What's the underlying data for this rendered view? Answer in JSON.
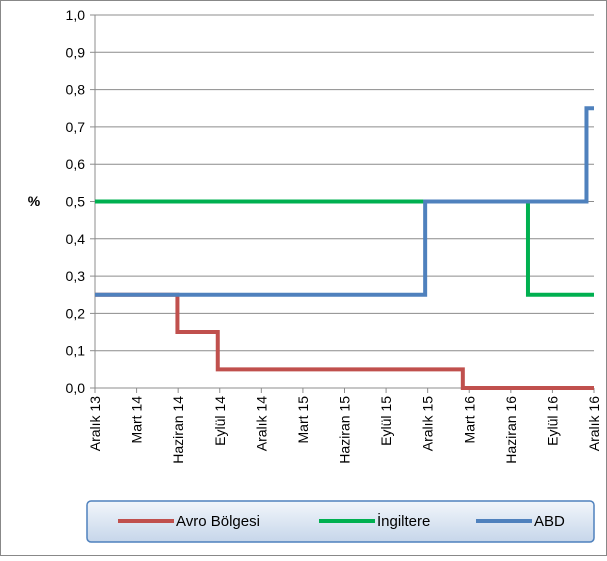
{
  "chart_data": {
    "type": "line",
    "step": true,
    "ylabel": "%",
    "ylim": [
      0.0,
      1.0
    ],
    "yticks": [
      "1,0",
      "0,9",
      "0,8",
      "0,7",
      "0,6",
      "0,5",
      "0,4",
      "0,3",
      "0,2",
      "0,1",
      "0,0"
    ],
    "grid": true,
    "legend_position": "bottom",
    "x_categories": [
      "Aralık 13",
      "Mart 14",
      "Haziran 14",
      "Eylül 14",
      "Aralık 14",
      "Mart 15",
      "Haziran 15",
      "Eylül 15",
      "Aralık 15",
      "Mart 16",
      "Haziran 16",
      "Eylül 16",
      "Aralık 16"
    ],
    "x_range": [
      "Aralık 13",
      "Aralık 16"
    ],
    "series": [
      {
        "name": "Avro Bölgesi",
        "color": "#c0504d",
        "points": [
          {
            "x": "2013-12-01",
            "y": 0.25
          },
          {
            "x": "2014-06-05",
            "y": 0.15
          },
          {
            "x": "2014-09-04",
            "y": 0.05
          },
          {
            "x": "2016-03-10",
            "y": 0.0
          },
          {
            "x": "2016-12-31",
            "y": 0.0
          }
        ]
      },
      {
        "name": "İngiltere",
        "color": "#00b050",
        "points": [
          {
            "x": "2013-12-01",
            "y": 0.5
          },
          {
            "x": "2016-08-04",
            "y": 0.25
          },
          {
            "x": "2016-12-31",
            "y": 0.25
          }
        ]
      },
      {
        "name": "ABD",
        "color": "#4f81bd",
        "points": [
          {
            "x": "2013-12-01",
            "y": 0.25
          },
          {
            "x": "2015-12-16",
            "y": 0.5
          },
          {
            "x": "2016-12-14",
            "y": 0.75
          },
          {
            "x": "2016-12-31",
            "y": 0.75
          }
        ]
      }
    ]
  }
}
